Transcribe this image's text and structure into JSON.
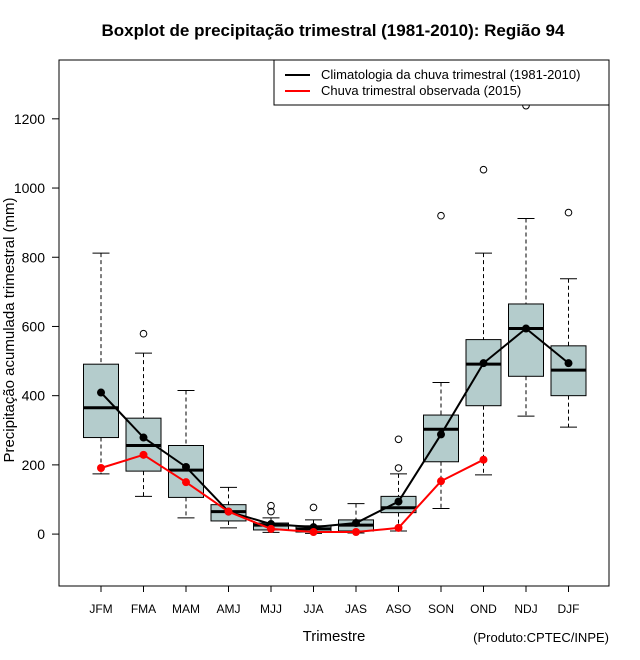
{
  "chart_data": {
    "type": "boxplot",
    "title": "Boxplot de precipitação trimestral (1981-2010): Região 94",
    "xlabel": "Trimestre",
    "ylabel": "Precipitação acumulada trimestral (mm)",
    "credit": "(Produto:CPTEC/INPE)",
    "ylim": [
      -150,
      1370
    ],
    "yticks": [
      0,
      200,
      400,
      600,
      800,
      1000,
      1200
    ],
    "ytick_labels": [
      "0",
      "200",
      "400",
      "600",
      "800",
      "1000",
      "1200"
    ],
    "grid": false,
    "legend_position": "top-right",
    "categories": [
      "JFM",
      "FMA",
      "MAM",
      "AMJ",
      "MJJ",
      "JJA",
      "JAS",
      "ASO",
      "SON",
      "OND",
      "NDJ",
      "DJF"
    ],
    "box_fill": "#b4cccc",
    "boxes": [
      {
        "whisker_low": 174,
        "q1": 279,
        "median": 365,
        "q3": 491,
        "whisker_high": 812,
        "outliers": []
      },
      {
        "whisker_low": 109,
        "q1": 182,
        "median": 256,
        "q3": 335,
        "whisker_high": 523,
        "outliers": [
          579
        ]
      },
      {
        "whisker_low": 47,
        "q1": 106,
        "median": 185,
        "q3": 256,
        "whisker_high": 415,
        "outliers": []
      },
      {
        "whisker_low": 18,
        "q1": 38,
        "median": 65,
        "q3": 85,
        "whisker_high": 135,
        "outliers": []
      },
      {
        "whisker_low": 5,
        "q1": 12,
        "median": 26,
        "q3": 32,
        "whisker_high": 47,
        "outliers": [
          65,
          82
        ]
      },
      {
        "whisker_low": 2,
        "q1": 6,
        "median": 15,
        "q3": 24,
        "whisker_high": 41,
        "outliers": [
          77
        ]
      },
      {
        "whisker_low": 3,
        "q1": 9,
        "median": 26,
        "q3": 41,
        "whisker_high": 88,
        "outliers": []
      },
      {
        "whisker_low": 9,
        "q1": 62,
        "median": 76,
        "q3": 109,
        "whisker_high": 174,
        "outliers": [
          191,
          274
        ]
      },
      {
        "whisker_low": 74,
        "q1": 209,
        "median": 303,
        "q3": 344,
        "whisker_high": 438,
        "outliers": [
          920
        ]
      },
      {
        "whisker_low": 171,
        "q1": 371,
        "median": 491,
        "q3": 562,
        "whisker_high": 812,
        "outliers": [
          1053
        ]
      },
      {
        "whisker_low": 341,
        "q1": 456,
        "median": 594,
        "q3": 665,
        "whisker_high": 912,
        "outliers": [
          1238
        ]
      },
      {
        "whisker_low": 309,
        "q1": 400,
        "median": 474,
        "q3": 544,
        "whisker_high": 738,
        "outliers": [
          929
        ]
      }
    ],
    "series": [
      {
        "name": "Climatologia da chuva trimestral (1981-2010)",
        "color": "#000000",
        "values": [
          409,
          279,
          194,
          65,
          29,
          20,
          32,
          94,
          288,
          494,
          594,
          494
        ]
      },
      {
        "name": "Chuva trimestral observada (2015)",
        "color": "#ff0000",
        "values": [
          191,
          229,
          150,
          65,
          15,
          6,
          6,
          18,
          153,
          215
        ]
      }
    ]
  }
}
